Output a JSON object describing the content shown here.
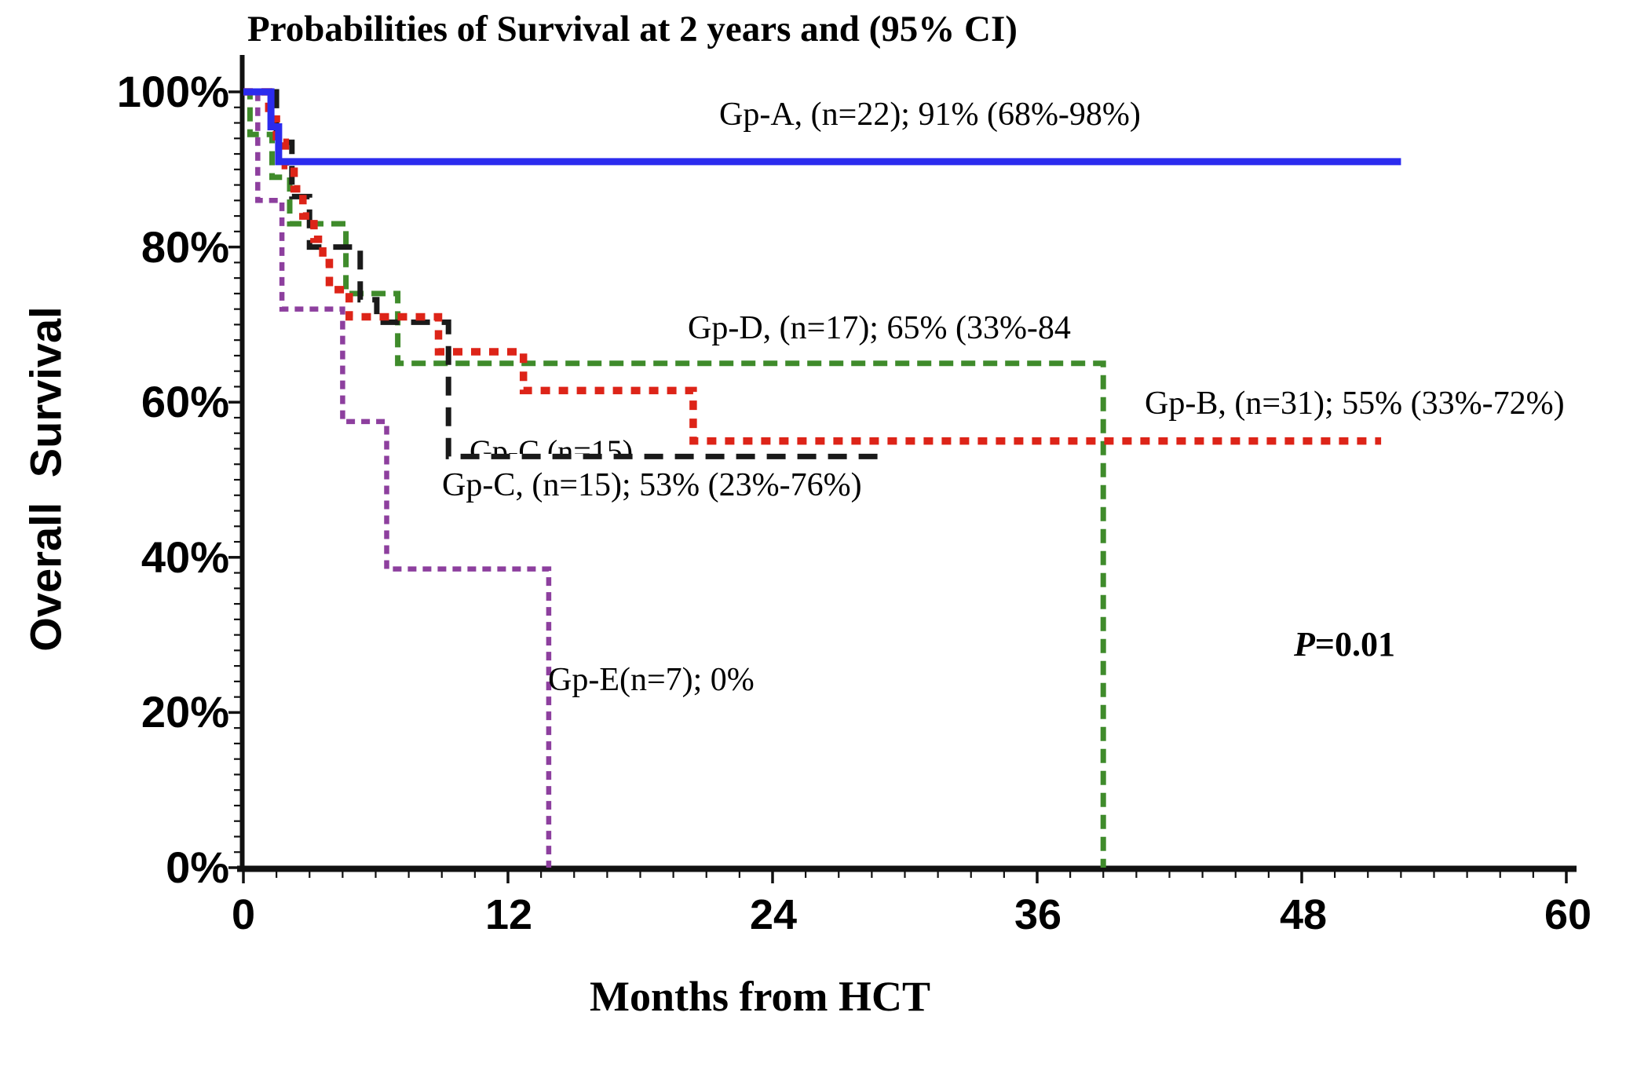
{
  "title": "Probabilities of Survival at 2 years and (95% CI)",
  "axes": {
    "y_label": "Overall Survival",
    "x_label": "Months from HCT",
    "y_tick_labels": [
      "100%",
      "80%",
      "60%",
      "40%",
      "20%",
      "0%"
    ],
    "x_tick_labels": [
      "0",
      "12",
      "24",
      "36",
      "48",
      "60"
    ]
  },
  "annotations": {
    "p_prefix": "P",
    "p_rest": "=0.01",
    "partially_hidden_label": "Gp-C (n=15)"
  },
  "chart_data": {
    "type": "line",
    "subtype": "kaplan-meier-step",
    "title": "Probabilities of Survival at 2 years and (95% CI)",
    "xlabel": "Months from HCT",
    "ylabel": "Overall Survival",
    "xlim": [
      0,
      60
    ],
    "ylim_pct": [
      0,
      100
    ],
    "x_ticks": [
      0,
      12,
      24,
      36,
      48,
      60
    ],
    "y_ticks_pct": [
      0,
      20,
      40,
      60,
      80,
      100
    ],
    "grid": false,
    "legend_position": "inline-annotations",
    "p_value": "P=0.01",
    "series": [
      {
        "name": "Gp-A",
        "label": "Gp-A, (n=22); 91% (68%-98%)",
        "n": 22,
        "estimate_2yr": "91% (68%-98%)",
        "color": "#2b2bee",
        "style": "solid",
        "width": 9,
        "z": 5,
        "end_month": 52.5,
        "steps": [
          [
            0,
            100
          ],
          [
            1.25,
            95.5
          ],
          [
            1.6,
            91
          ]
        ]
      },
      {
        "name": "Gp-B",
        "label": "Gp-B, (n=31); 55% (33%-72%)",
        "n": 31,
        "estimate_2yr": "55% (33%-72%)",
        "color": "#dd2418",
        "style": "dot",
        "width": 9.5,
        "z": 4,
        "end_month": 51.6,
        "steps": [
          [
            0,
            100
          ],
          [
            1.15,
            96.5
          ],
          [
            1.5,
            93.5
          ],
          [
            1.9,
            90.5
          ],
          [
            2.3,
            87.5
          ],
          [
            2.7,
            84
          ],
          [
            3.2,
            81
          ],
          [
            3.6,
            78
          ],
          [
            3.9,
            74.5
          ],
          [
            4.8,
            71
          ],
          [
            8.85,
            66.5
          ],
          [
            12.7,
            61.5
          ],
          [
            20.4,
            55
          ]
        ]
      },
      {
        "name": "Gp-C",
        "label": "Gp-C, (n=15); 53% (23%-76%)",
        "n": 15,
        "estimate_2yr": "53% (23%-76%)",
        "color": "#1a1a1a",
        "style": "longdash",
        "width": 7,
        "z": 3,
        "end_month": 29.1,
        "steps": [
          [
            0,
            100
          ],
          [
            1.5,
            93.5
          ],
          [
            2.2,
            86.5
          ],
          [
            3.0,
            80
          ],
          [
            5.3,
            73.2
          ],
          [
            6.05,
            70.3
          ],
          [
            9.3,
            53
          ]
        ]
      },
      {
        "name": "Gp-D",
        "label": "Gp-D, (n=17); 65% (33%-84",
        "n": 17,
        "estimate_2yr": "65% (33%-84",
        "color": "#3f8b2b",
        "style": "dash",
        "width": 7,
        "z": 1,
        "end_month": 39.0,
        "steps": [
          [
            0,
            100
          ],
          [
            0.3,
            94.5
          ],
          [
            1.3,
            89
          ],
          [
            2.1,
            83
          ],
          [
            4.65,
            74
          ],
          [
            7.0,
            65
          ],
          [
            39.0,
            0
          ]
        ]
      },
      {
        "name": "Gp-E",
        "label": "Gp-E(n=7); 0%",
        "n": 7,
        "estimate_2yr": "0%",
        "color": "#8d3f9e",
        "style": "shortdash",
        "width": 6.5,
        "z": 2,
        "end_month": 13.85,
        "steps": [
          [
            0,
            100
          ],
          [
            0.65,
            86
          ],
          [
            1.75,
            72
          ],
          [
            4.5,
            57.5
          ],
          [
            6.5,
            38.5
          ],
          [
            13.85,
            0
          ]
        ]
      }
    ]
  }
}
